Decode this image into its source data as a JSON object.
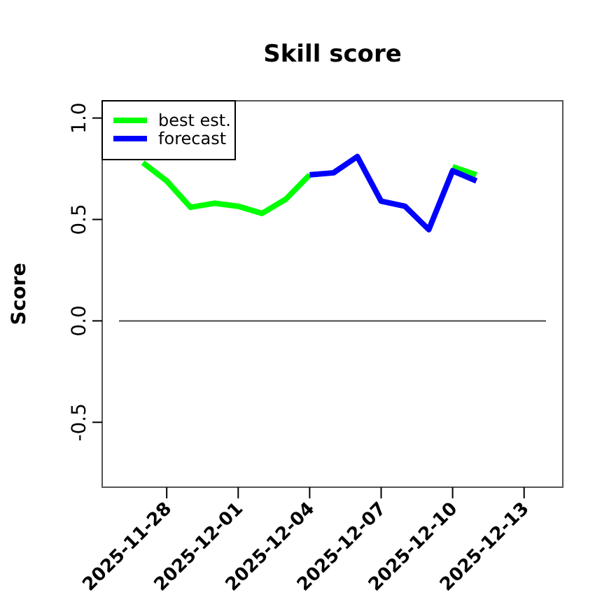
{
  "chart_data": {
    "type": "line",
    "title": "Skill score",
    "ylabel": "Score",
    "x": [
      "2025-11-27",
      "2025-11-28",
      "2025-11-29",
      "2025-11-30",
      "2025-12-01",
      "2025-12-02",
      "2025-12-03",
      "2025-12-04",
      "2025-12-05",
      "2025-12-06",
      "2025-12-07",
      "2025-12-08",
      "2025-12-09",
      "2025-12-10",
      "2025-12-11"
    ],
    "series": [
      {
        "name": "best est.",
        "color": "#00ff00",
        "values": [
          0.78,
          0.69,
          0.56,
          0.58,
          0.565,
          0.53,
          0.6,
          0.72,
          null,
          null,
          null,
          null,
          null,
          0.76,
          0.72
        ]
      },
      {
        "name": "forecast",
        "color": "#0000ff",
        "values": [
          null,
          null,
          null,
          null,
          null,
          null,
          null,
          0.72,
          0.73,
          0.81,
          0.59,
          0.565,
          0.45,
          0.74,
          0.69
        ]
      }
    ],
    "xlim": [
      "2025-11-25T07:00",
      "2025-12-14T15:00"
    ],
    "xticks": [
      {
        "value": "2025-11-28",
        "label": "2025-11-28"
      },
      {
        "value": "2025-12-01",
        "label": "2025-12-01"
      },
      {
        "value": "2025-12-04",
        "label": "2025-12-04"
      },
      {
        "value": "2025-12-07",
        "label": "2025-12-07"
      },
      {
        "value": "2025-12-10",
        "label": "2025-12-10"
      },
      {
        "value": "2025-12-13",
        "label": "2025-12-13"
      }
    ],
    "ylim": [
      -0.82,
      1.085
    ],
    "yticks": [
      {
        "value": -0.5,
        "label": "-0.5"
      },
      {
        "value": 0,
        "label": "0.0"
      },
      {
        "value": 0.5,
        "label": "0.5"
      },
      {
        "value": 1,
        "label": "1.0"
      }
    ],
    "ref_lines": [
      {
        "axis": "y",
        "value": 0,
        "color": "#444444"
      }
    ],
    "legend": "top left",
    "grid": false,
    "line_style": "solid",
    "marker": "none"
  }
}
